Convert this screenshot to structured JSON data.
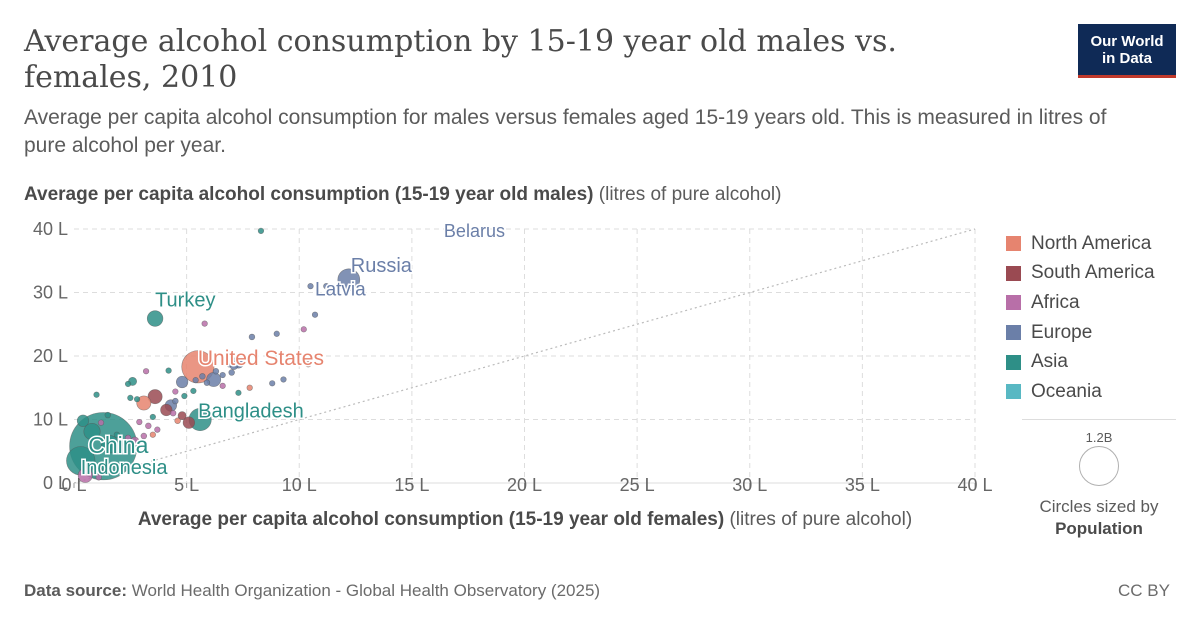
{
  "header": {
    "title": "Average alcohol consumption by 15-19 year old males vs. females, 2010",
    "subtitle": "Average per capita alcohol consumption for males versus females aged 15-19 years old. This is measured in litres of pure alcohol per year.",
    "logo_line1": "Our World",
    "logo_line2": "in Data"
  },
  "axes": {
    "y_label_bold": "Average per capita alcohol consumption (15-19 year old males)",
    "y_label_unit": "(litres of pure alcohol)",
    "x_label_bold": "Average per capita alcohol consumption (15-19 year old females)",
    "x_label_unit": "(litres of pure alcohol)"
  },
  "size_legend": {
    "value": "1.2B",
    "caption_line1": "Circles sized by",
    "caption_line2": "Population"
  },
  "footer": {
    "source_label": "Data source:",
    "source_text": "World Health Organization - Global Health Observatory (2025)",
    "license": "CC BY"
  },
  "colors": {
    "North America": "#e6846f",
    "South America": "#9a4a52",
    "Africa": "#b86fa8",
    "Europe": "#6b7fa8",
    "Asia": "#2e8f87",
    "Oceania": "#58b8c3"
  },
  "chart_data": {
    "type": "scatter",
    "xlim": [
      0,
      40
    ],
    "ylim": [
      0,
      40
    ],
    "x_ticks": [
      "0 L",
      "5 L",
      "10 L",
      "15 L",
      "20 L",
      "25 L",
      "30 L",
      "35 L",
      "40 L"
    ],
    "y_ticks": [
      "0 L",
      "10 L",
      "20 L",
      "30 L",
      "40 L"
    ],
    "x_tick_values": [
      0,
      5,
      10,
      15,
      20,
      25,
      30,
      35,
      40
    ],
    "y_tick_values": [
      0,
      10,
      20,
      30,
      40
    ],
    "grid": true,
    "reference_line": "y = x",
    "legend_position": "right",
    "legend": [
      "North America",
      "South America",
      "Africa",
      "Europe",
      "Asia",
      "Oceania"
    ],
    "labeled_points": [
      {
        "label": "Russia",
        "x": 12.2,
        "y": 32,
        "region": "Europe",
        "pop": 143
      },
      {
        "label": "Latvia",
        "x": 10.7,
        "y": 26.5,
        "region": "Europe",
        "pop": 2
      },
      {
        "label": "Belarus",
        "x": 17,
        "y": 39.5,
        "region": "Europe",
        "pop": 9.5
      },
      {
        "label": "Turkey",
        "x": 3.6,
        "y": 25.9,
        "region": "Asia",
        "pop": 73
      },
      {
        "label": "United States",
        "x": 5.5,
        "y": 18.3,
        "region": "North America",
        "pop": 309
      },
      {
        "label": "Bangladesh",
        "x": 5.6,
        "y": 10,
        "region": "Asia",
        "pop": 148
      },
      {
        "label": "China",
        "x": 1.3,
        "y": 5.8,
        "region": "Asia",
        "pop": 1340
      },
      {
        "label": "Indonesia",
        "x": 0.3,
        "y": 3.5,
        "region": "Asia",
        "pop": 241
      }
    ],
    "points": [
      {
        "x": 8.3,
        "y": 39.7,
        "region": "Asia",
        "pop": 5
      },
      {
        "x": 9,
        "y": 23.5,
        "region": "Europe",
        "pop": 5
      },
      {
        "x": 9.6,
        "y": 19.8,
        "region": "Europe",
        "pop": 5
      },
      {
        "x": 9.3,
        "y": 16.3,
        "region": "Europe",
        "pop": 5
      },
      {
        "x": 10.4,
        "y": 18.7,
        "region": "North America",
        "pop": 5
      },
      {
        "x": 10.5,
        "y": 31,
        "region": "Europe",
        "pop": 5
      },
      {
        "x": 11.2,
        "y": 31,
        "region": "Europe",
        "pop": 5
      },
      {
        "x": 10.2,
        "y": 24.2,
        "region": "Africa",
        "pop": 5
      },
      {
        "x": 5.8,
        "y": 25.1,
        "region": "Africa",
        "pop": 5
      },
      {
        "x": 7.9,
        "y": 23,
        "region": "Europe",
        "pop": 10
      },
      {
        "x": 7.3,
        "y": 19,
        "region": "Europe",
        "pop": 40
      },
      {
        "x": 7.1,
        "y": 18.5,
        "region": "Europe",
        "pop": 20
      },
      {
        "x": 6.9,
        "y": 18.7,
        "region": "Europe",
        "pop": 10
      },
      {
        "x": 7,
        "y": 17.4,
        "region": "Europe",
        "pop": 10
      },
      {
        "x": 6.6,
        "y": 17,
        "region": "Europe",
        "pop": 5
      },
      {
        "x": 6.2,
        "y": 16.3,
        "region": "Europe",
        "pop": 60
      },
      {
        "x": 6.3,
        "y": 17.6,
        "region": "Europe",
        "pop": 10
      },
      {
        "x": 5.9,
        "y": 15.8,
        "region": "Europe",
        "pop": 10
      },
      {
        "x": 5.7,
        "y": 16.8,
        "region": "Europe",
        "pop": 10
      },
      {
        "x": 6.6,
        "y": 15.3,
        "region": "Africa",
        "pop": 5
      },
      {
        "x": 7.8,
        "y": 15,
        "region": "North America",
        "pop": 5
      },
      {
        "x": 7.3,
        "y": 14.2,
        "region": "Asia",
        "pop": 5
      },
      {
        "x": 8.8,
        "y": 15.7,
        "region": "Europe",
        "pop": 5
      },
      {
        "x": 5.3,
        "y": 14.5,
        "region": "Asia",
        "pop": 5
      },
      {
        "x": 5.4,
        "y": 16.2,
        "region": "Europe",
        "pop": 5
      },
      {
        "x": 4.8,
        "y": 15.9,
        "region": "Europe",
        "pop": 40
      },
      {
        "x": 4.5,
        "y": 14.4,
        "region": "Africa",
        "pop": 5
      },
      {
        "x": 4.9,
        "y": 13.7,
        "region": "Asia",
        "pop": 5
      },
      {
        "x": 4.5,
        "y": 12.9,
        "region": "Europe",
        "pop": 10
      },
      {
        "x": 4.3,
        "y": 12.2,
        "region": "Europe",
        "pop": 40
      },
      {
        "x": 4.1,
        "y": 11.5,
        "region": "South America",
        "pop": 40
      },
      {
        "x": 4.4,
        "y": 11,
        "region": "Africa",
        "pop": 10
      },
      {
        "x": 4.8,
        "y": 10.6,
        "region": "South America",
        "pop": 20
      },
      {
        "x": 5.1,
        "y": 9.5,
        "region": "South America",
        "pop": 40
      },
      {
        "x": 4.6,
        "y": 9.8,
        "region": "North America",
        "pop": 10
      },
      {
        "x": 3.6,
        "y": 13.6,
        "region": "South America",
        "pop": 60
      },
      {
        "x": 3.1,
        "y": 12.6,
        "region": "North America",
        "pop": 60
      },
      {
        "x": 2.8,
        "y": 13.2,
        "region": "Asia",
        "pop": 5
      },
      {
        "x": 2.5,
        "y": 13.4,
        "region": "Asia",
        "pop": 5
      },
      {
        "x": 2.6,
        "y": 16,
        "region": "Asia",
        "pop": 20
      },
      {
        "x": 2.4,
        "y": 15.6,
        "region": "Asia",
        "pop": 5
      },
      {
        "x": 3.2,
        "y": 17.6,
        "region": "Africa",
        "pop": 5
      },
      {
        "x": 4.2,
        "y": 17.7,
        "region": "Asia",
        "pop": 5
      },
      {
        "x": 3.5,
        "y": 10.4,
        "region": "Asia",
        "pop": 5
      },
      {
        "x": 3.3,
        "y": 9,
        "region": "Africa",
        "pop": 10
      },
      {
        "x": 2.9,
        "y": 9.6,
        "region": "Africa",
        "pop": 5
      },
      {
        "x": 3.7,
        "y": 8.4,
        "region": "Africa",
        "pop": 5
      },
      {
        "x": 3.5,
        "y": 7.6,
        "region": "North America",
        "pop": 5
      },
      {
        "x": 3.1,
        "y": 7.4,
        "region": "Africa",
        "pop": 10
      },
      {
        "x": 2.7,
        "y": 6.6,
        "region": "Africa",
        "pop": 20
      },
      {
        "x": 2.4,
        "y": 7.1,
        "region": "Africa",
        "pop": 10
      },
      {
        "x": 2.1,
        "y": 6.3,
        "region": "Asia",
        "pop": 10
      },
      {
        "x": 1.9,
        "y": 7.6,
        "region": "Asia",
        "pop": 5
      },
      {
        "x": 1.5,
        "y": 10.7,
        "region": "Asia",
        "pop": 10
      },
      {
        "x": 1.2,
        "y": 9.5,
        "region": "Africa",
        "pop": 5
      },
      {
        "x": 1.0,
        "y": 13.9,
        "region": "Asia",
        "pop": 5
      },
      {
        "x": 0.4,
        "y": 9.8,
        "region": "Asia",
        "pop": 40
      },
      {
        "x": 0.8,
        "y": 8.1,
        "region": "Asia",
        "pop": 80
      },
      {
        "x": 1.6,
        "y": 6.1,
        "region": "Asia",
        "pop": 90
      },
      {
        "x": 0.5,
        "y": 1.2,
        "region": "Africa",
        "pop": 60
      },
      {
        "x": 1.1,
        "y": 0.9,
        "region": "Africa",
        "pop": 10
      },
      {
        "x": 1.4,
        "y": 2.5,
        "region": "Asia",
        "pop": 20
      }
    ]
  }
}
